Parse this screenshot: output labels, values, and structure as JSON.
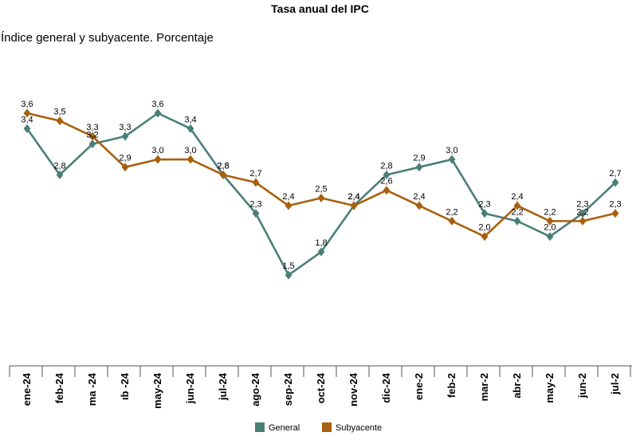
{
  "chart_data": {
    "type": "line",
    "title": "Tasa anual del IPC",
    "subtitle": "Índice general y subyacente. Porcentaje",
    "categories": [
      "ene-24",
      "feb-24",
      "ma -24",
      "ıb -24",
      "may-24",
      "jun-24",
      "jul-24",
      "ago-24",
      "sep-24",
      "oct-24",
      "nov-24",
      "dic-24",
      "ene-2",
      "feb-2",
      "mar-2",
      "abr-2",
      "may-2",
      "jun-2",
      "jul-2"
    ],
    "series": [
      {
        "name": "General",
        "color": "#4a7f78",
        "values": [
          3.4,
          2.8,
          3.2,
          3.3,
          3.6,
          3.4,
          2.8,
          2.3,
          1.5,
          1.8,
          2.4,
          2.8,
          2.9,
          3.0,
          2.3,
          2.2,
          2.0,
          2.3,
          2.7
        ],
        "labels": [
          "3,4",
          "2,8",
          "3,2",
          "3,3",
          "3,6",
          "3,4",
          "2,8",
          "2,3",
          "1,5",
          "1,8",
          "2,4",
          "2,8",
          "2,9",
          "3,0",
          "2,3",
          "2,2",
          "2,0",
          "2,3",
          "2,7"
        ]
      },
      {
        "name": "Subyacente",
        "color": "#a8600e",
        "values": [
          3.6,
          3.5,
          3.3,
          2.9,
          3.0,
          3.0,
          2.8,
          2.7,
          2.4,
          2.5,
          2.4,
          2.6,
          2.4,
          2.2,
          2.0,
          2.4,
          2.2,
          2.2,
          2.3
        ],
        "labels": [
          "3,6",
          "3,5",
          "3,3",
          "2,9",
          "3,0",
          "3,0",
          "2,8",
          "2,7",
          "2,4",
          "2,5",
          "2,4",
          "2,6",
          "2,4",
          "2,2",
          "2,0",
          "2,4",
          "2,2",
          "2,2",
          "2,3"
        ]
      }
    ],
    "grid": false,
    "legend": "bottom-center"
  }
}
